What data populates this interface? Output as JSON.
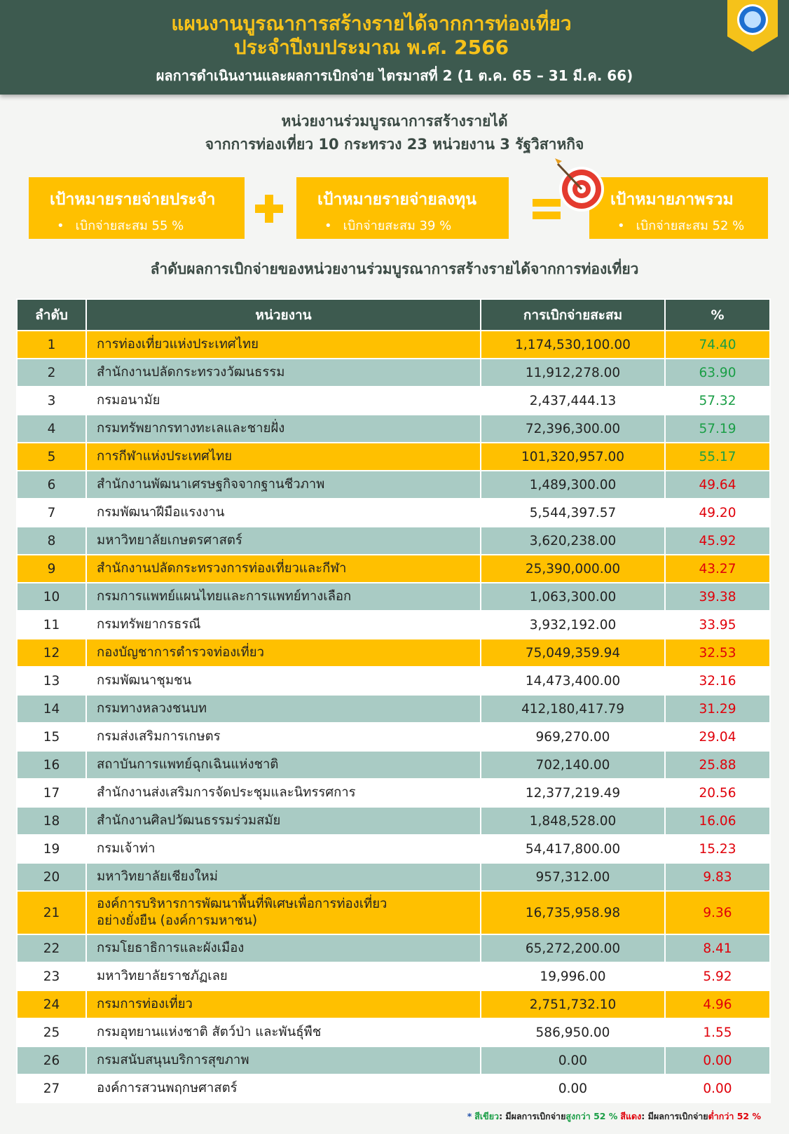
{
  "header": {
    "title_lines": [
      "แผนงานบูรณาการสร้างรายได้จากการท่องเที่ยว",
      "ประจำปีงบประมาณ พ.ศ. 2566"
    ],
    "subtitle": "ผลการดำเนินงานและผลการเบิกจ่าย ไตรมาสที่ 2 (1 ต.ค. 65 – 31 มี.ค. 66)"
  },
  "intro": {
    "lines": [
      "หน่วยงานร่วมบูรณาการสร้างรายได้",
      "จากการท่องเที่ยว 10 กระทรวง 23 หน่วยงาน 3 รัฐวิสาหกิจ"
    ]
  },
  "targets": [
    {
      "title": "เป้าหมายรายจ่ายประจำ",
      "detail": "เบิกจ่ายสะสม 55 %"
    },
    {
      "title": "เป้าหมายรายจ่ายลงทุน",
      "detail": "เบิกจ่ายสะสม 39 %"
    },
    {
      "title": "เป้าหมายภาพรวม",
      "detail": "เบิกจ่ายสะสม 52 %"
    }
  ],
  "ranking_title": "ลำดับผลการเบิกจ่ายของหน่วยงานร่วมบูรณาการสร้างรายได้จากการท่องเที่ยว",
  "table": {
    "columns": [
      "ลำดับ",
      "หน่วยงาน",
      "การเบิกจ่ายสะสม",
      "%"
    ],
    "rows": [
      [
        "1",
        "การท่องเที่ยวแห่งประเทศไทย",
        "1,174,530,100.00",
        "74.40"
      ],
      [
        "2",
        "สำนักงานปลัดกระทรวงวัฒนธรรม",
        "11,912,278.00",
        "63.90"
      ],
      [
        "3",
        "กรมอนามัย",
        "2,437,444.13",
        "57.32"
      ],
      [
        "4",
        "กรมทรัพยากรทางทะเลและชายฝั่ง",
        "72,396,300.00",
        "57.19"
      ],
      [
        "5",
        "การกีฬาแห่งประเทศไทย",
        "101,320,957.00",
        "55.17"
      ],
      [
        "6",
        "สำนักงานพัฒนาเศรษฐกิจจากฐานชีวภาพ",
        "1,489,300.00",
        "49.64"
      ],
      [
        "7",
        "กรมพัฒนาฝีมือแรงงาน",
        "5,544,397.57",
        "49.20"
      ],
      [
        "8",
        "มหาวิทยาลัยเกษตรศาสตร์",
        "3,620,238.00",
        "45.92"
      ],
      [
        "9",
        "สำนักงานปลัดกระทรวงการท่องเที่ยวและกีฬา",
        "25,390,000.00",
        "43.27"
      ],
      [
        "10",
        "กรมการแพทย์แผนไทยและการแพทย์ทางเลือก",
        "1,063,300.00",
        "39.38"
      ],
      [
        "11",
        "กรมทรัพยากรธรณี",
        "3,932,192.00",
        "33.95"
      ],
      [
        "12",
        "กองบัญชาการตำรวจท่องเที่ยว",
        "75,049,359.94",
        "32.53"
      ],
      [
        "13",
        "กรมพัฒนาชุมชน",
        "14,473,400.00",
        "32.16"
      ],
      [
        "14",
        "กรมทางหลวงชนบท",
        "412,180,417.79",
        "31.29"
      ],
      [
        "15",
        "กรมส่งเสริมการเกษตร",
        "969,270.00",
        "29.04"
      ],
      [
        "16",
        "สถาบันการแพทย์ฉุกเฉินแห่งชาติ",
        "702,140.00",
        "25.88"
      ],
      [
        "17",
        "สำนักงานส่งเสริมการจัดประชุมและนิทรรศการ",
        "12,377,219.49",
        "20.56"
      ],
      [
        "18",
        "สำนักงานศิลปวัฒนธรรมร่วมสมัย",
        "1,848,528.00",
        "16.06"
      ],
      [
        "19",
        "กรมเจ้าท่า",
        "54,417,800.00",
        "15.23"
      ],
      [
        "20",
        "มหาวิทยาลัยเชียงใหม่",
        "957,312.00",
        "9.83"
      ],
      [
        "21",
        "องค์การบริหารการพัฒนาพื้นที่พิเศษเพื่อการท่องเที่ยว\nอย่างยั่งยืน (องค์การมหาชน)",
        "16,735,958.98",
        "9.36"
      ],
      [
        "22",
        "กรมโยธาธิการและผังเมือง",
        "65,272,200.00",
        "8.41"
      ],
      [
        "23",
        "มหาวิทยาลัยราชภัฏเลย",
        "19,996.00",
        "5.92"
      ],
      [
        "24",
        "กรมการท่องเที่ยว",
        "2,751,732.10",
        "4.96"
      ],
      [
        "25",
        "กรมอุทยานแห่งชาติ สัตว์ป่า และพันธุ์พืช",
        "586,950.00",
        "1.55"
      ],
      [
        "26",
        "กรมสนับสนุนบริการสุขภาพ",
        "0.00",
        "0.00"
      ],
      [
        "27",
        "องค์การสวนพฤกษศาสตร์",
        "0.00",
        "0.00"
      ]
    ]
  },
  "footnote": {
    "parts": [
      "*",
      "สีเขียว",
      ": มีผลการเบิกจ่าย",
      "สูงกว่า 52 %",
      "สีแดง",
      ": มีผลการเบิกจ่าย",
      "ต่ำกว่า 52 %"
    ]
  }
}
